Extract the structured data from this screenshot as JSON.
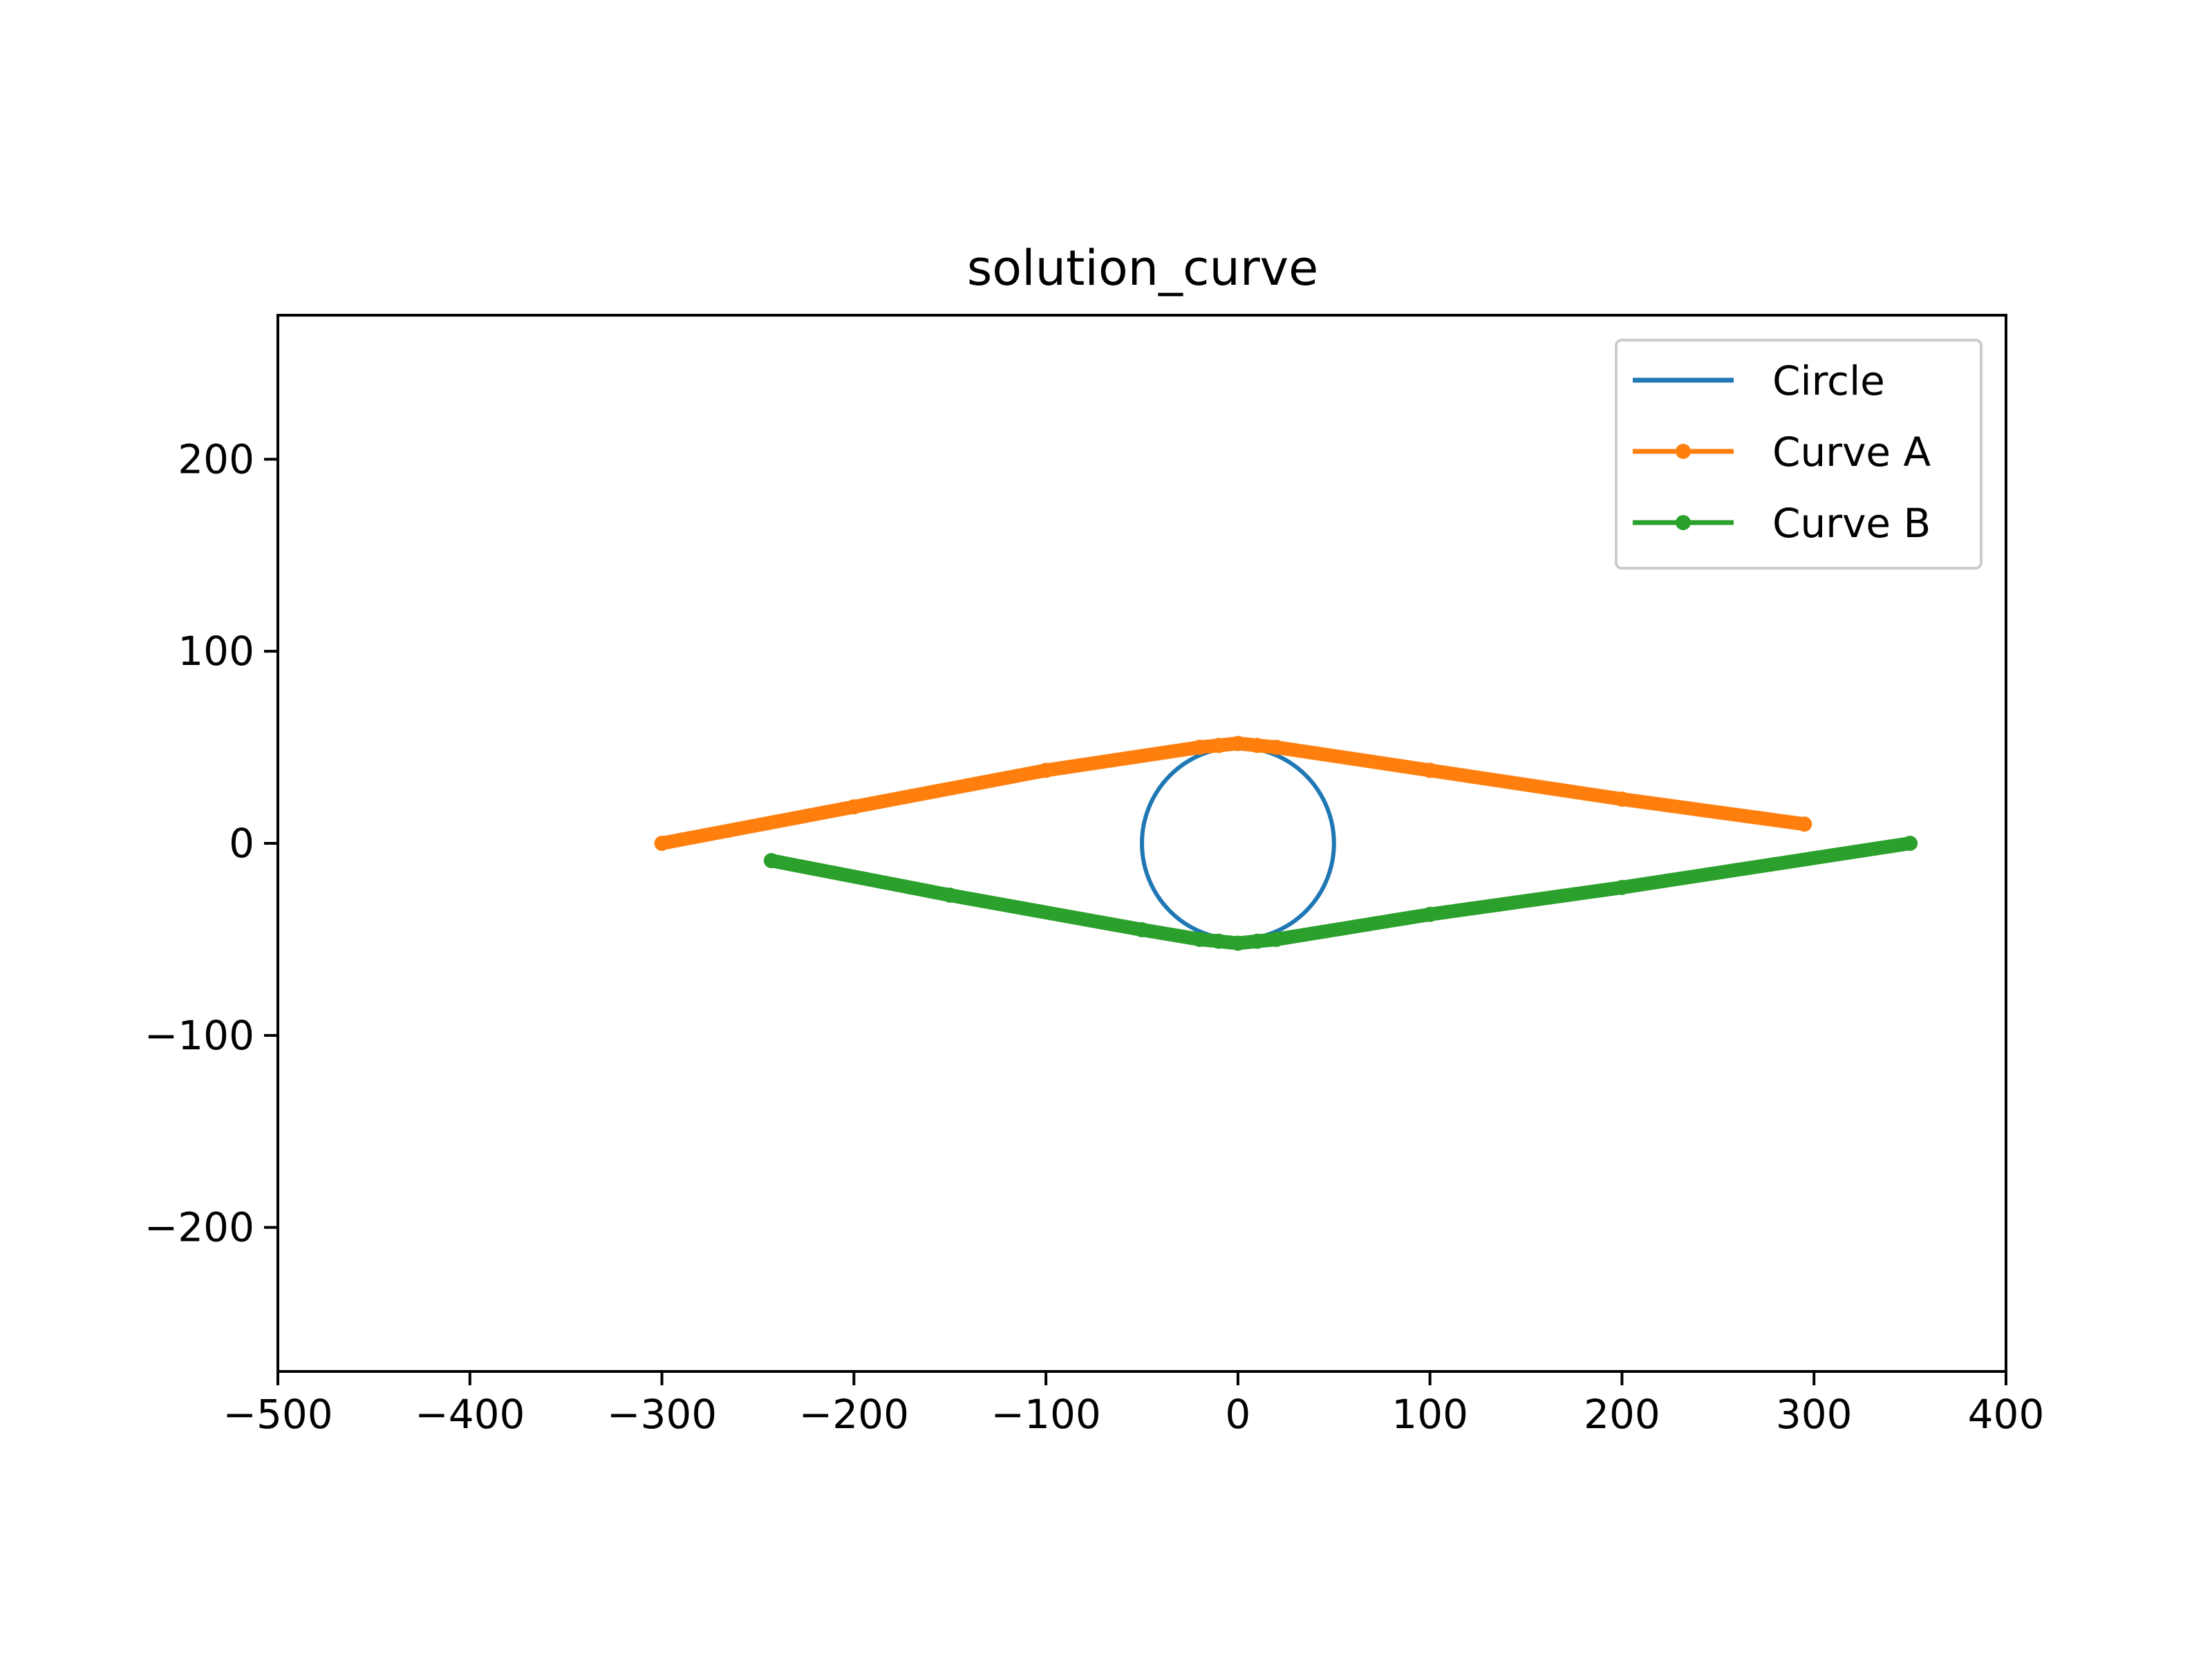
{
  "chart_data": {
    "type": "line",
    "title": "solution_curve",
    "xlabel": "",
    "ylabel": "",
    "xlim": [
      -500,
      400
    ],
    "ylim": [
      -275,
      275
    ],
    "xticks": [
      -500,
      -400,
      -300,
      -200,
      -100,
      0,
      100,
      200,
      300,
      400
    ],
    "yticks": [
      -200,
      -100,
      0,
      100,
      200
    ],
    "grid": false,
    "legend_position": "top-right",
    "series": [
      {
        "name": "Circle",
        "kind": "circle",
        "center": [
          0,
          0
        ],
        "radius": 50,
        "color": "#1f77b4",
        "marker": false
      },
      {
        "name": "Curve A",
        "kind": "polyline",
        "color": "#ff7f0e",
        "marker": true,
        "x": [
          -300,
          -200,
          -100,
          -20,
          -10,
          0,
          10,
          20,
          100,
          200,
          295
        ],
        "y": [
          0,
          19,
          38,
          50,
          51,
          52,
          51,
          50,
          38,
          23,
          10
        ]
      },
      {
        "name": "Curve B",
        "kind": "polyline",
        "color": "#2ca02c",
        "marker": true,
        "x": [
          -243,
          -150,
          -50,
          -20,
          -10,
          0,
          10,
          20,
          100,
          200,
          350
        ],
        "y": [
          -9,
          -27,
          -45,
          -50,
          -51,
          -52,
          -51,
          -50,
          -37,
          -23,
          0
        ]
      }
    ]
  }
}
